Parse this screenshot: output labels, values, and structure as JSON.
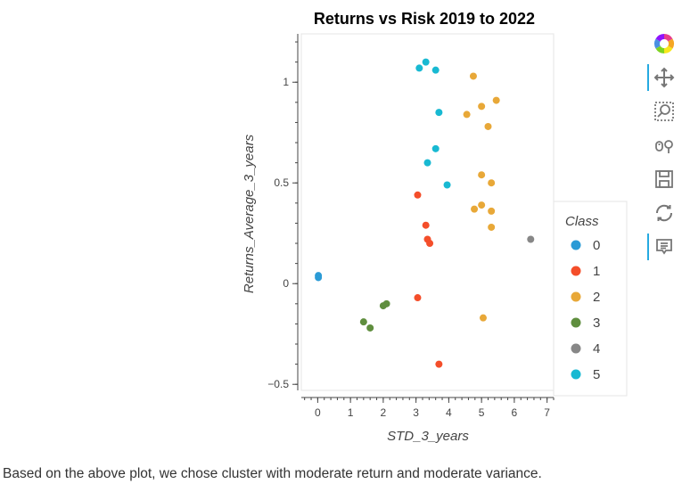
{
  "chart_data": {
    "type": "scatter",
    "title": "Returns vs Risk 2019 to 2022",
    "xlabel": "STD_3_years",
    "ylabel": "Returns_Average_3_years",
    "xlim": [
      -0.5,
      7.2
    ],
    "ylim": [
      -0.53,
      1.24
    ],
    "x_ticks": [
      "0",
      "1",
      "2",
      "3",
      "4",
      "5",
      "6",
      "7"
    ],
    "y_ticks": [
      "−0.5",
      "0",
      "0.5",
      "1"
    ],
    "x_tick_values": [
      0,
      1,
      2,
      3,
      4,
      5,
      6,
      7
    ],
    "y_tick_values": [
      -0.5,
      0,
      0.5,
      1
    ],
    "legend_title": "Class",
    "legend_position": "right",
    "series": [
      {
        "name": "0",
        "color": "#2b9bd6",
        "points": [
          [
            0.02,
            0.04
          ],
          [
            0.02,
            0.03
          ]
        ]
      },
      {
        "name": "1",
        "color": "#f44e2a",
        "points": [
          [
            3.05,
            0.44
          ],
          [
            3.3,
            0.29
          ],
          [
            3.35,
            0.22
          ],
          [
            3.42,
            0.2
          ],
          [
            3.05,
            -0.07
          ],
          [
            3.7,
            -0.4
          ]
        ]
      },
      {
        "name": "2",
        "color": "#e8a838",
        "points": [
          [
            4.75,
            1.03
          ],
          [
            5.45,
            0.91
          ],
          [
            5.0,
            0.88
          ],
          [
            4.55,
            0.84
          ],
          [
            5.2,
            0.78
          ],
          [
            5.0,
            0.54
          ],
          [
            5.3,
            0.5
          ],
          [
            5.0,
            0.39
          ],
          [
            4.78,
            0.37
          ],
          [
            5.3,
            0.36
          ],
          [
            5.3,
            0.28
          ],
          [
            5.05,
            -0.17
          ]
        ]
      },
      {
        "name": "3",
        "color": "#5f8e3e",
        "points": [
          [
            2.1,
            -0.1
          ],
          [
            2.0,
            -0.11
          ],
          [
            1.4,
            -0.19
          ],
          [
            1.6,
            -0.22
          ]
        ]
      },
      {
        "name": "4",
        "color": "#878787",
        "points": [
          [
            6.5,
            0.22
          ]
        ]
      },
      {
        "name": "5",
        "color": "#18b9d2",
        "points": [
          [
            3.3,
            1.1
          ],
          [
            3.1,
            1.07
          ],
          [
            3.6,
            1.06
          ],
          [
            3.7,
            0.85
          ],
          [
            3.6,
            0.67
          ],
          [
            3.35,
            0.6
          ],
          [
            3.95,
            0.49
          ]
        ]
      }
    ]
  },
  "toolbar": {
    "tools": [
      {
        "id": "logo",
        "icon": "bokeh-logo-icon"
      },
      {
        "id": "pan",
        "icon": "pan-icon"
      },
      {
        "id": "box-zoom",
        "icon": "box-zoom-icon"
      },
      {
        "id": "wheel-zoom",
        "icon": "wheel-zoom-icon"
      },
      {
        "id": "save",
        "icon": "save-icon"
      },
      {
        "id": "reset",
        "icon": "reset-icon"
      },
      {
        "id": "hover",
        "icon": "hover-icon"
      }
    ]
  },
  "caption": "Based on the above plot, we chose cluster with moderate return and moderate variance."
}
